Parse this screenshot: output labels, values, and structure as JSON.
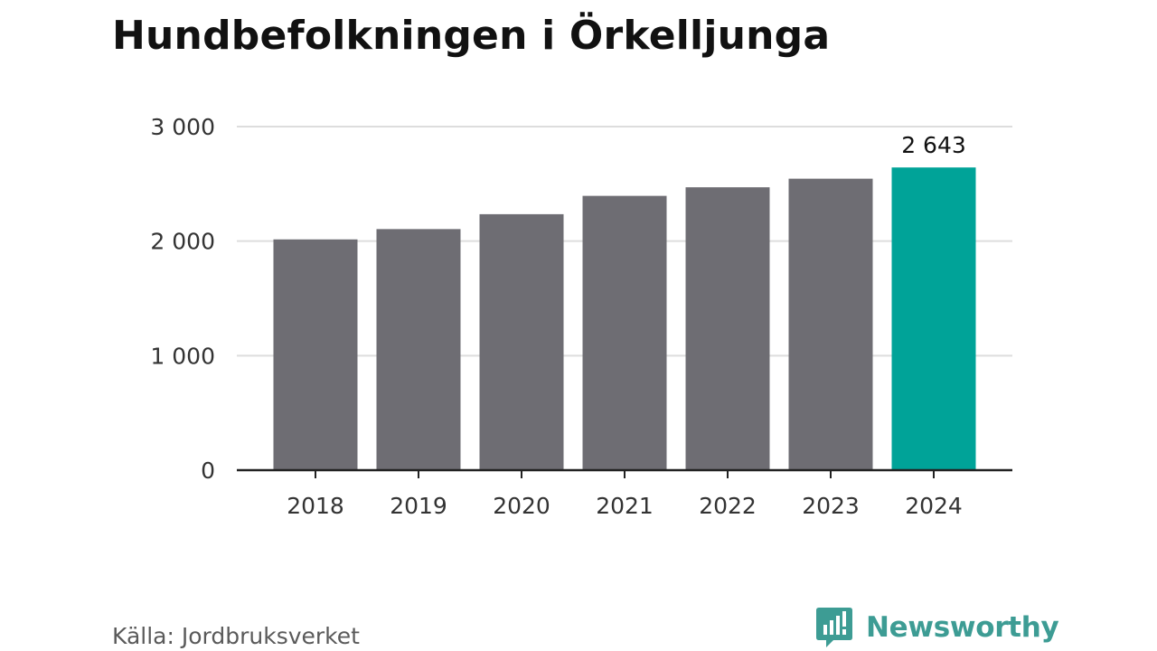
{
  "title": "Hundbefolkningen i Örkelljunga",
  "source": "Källa: Jordbruksverket",
  "brand": {
    "name": "Newsworthy",
    "icon": "newsworthy-logo-icon",
    "color": "#3d9c94"
  },
  "colors": {
    "bar": "#6e6d73",
    "highlight": "#00a398",
    "grid": "#dddddd",
    "axis": "#222222",
    "text": "#333333"
  },
  "chart_data": {
    "type": "bar",
    "title": "Hundbefolkningen i Örkelljunga",
    "categories": [
      "2018",
      "2019",
      "2020",
      "2021",
      "2022",
      "2023",
      "2024"
    ],
    "values": [
      2015,
      2105,
      2235,
      2395,
      2470,
      2545,
      2643
    ],
    "highlight_index": 6,
    "data_labels": [
      {
        "index": 6,
        "text": "2 643"
      }
    ],
    "ylim": [
      0,
      3000
    ],
    "yticks": [
      {
        "value": 0,
        "label": "0"
      },
      {
        "value": 1000,
        "label": "1 000"
      },
      {
        "value": 2000,
        "label": "2 000"
      },
      {
        "value": 3000,
        "label": "3 000"
      }
    ],
    "xlabel": "",
    "ylabel": "",
    "grid": true,
    "legend": false
  }
}
